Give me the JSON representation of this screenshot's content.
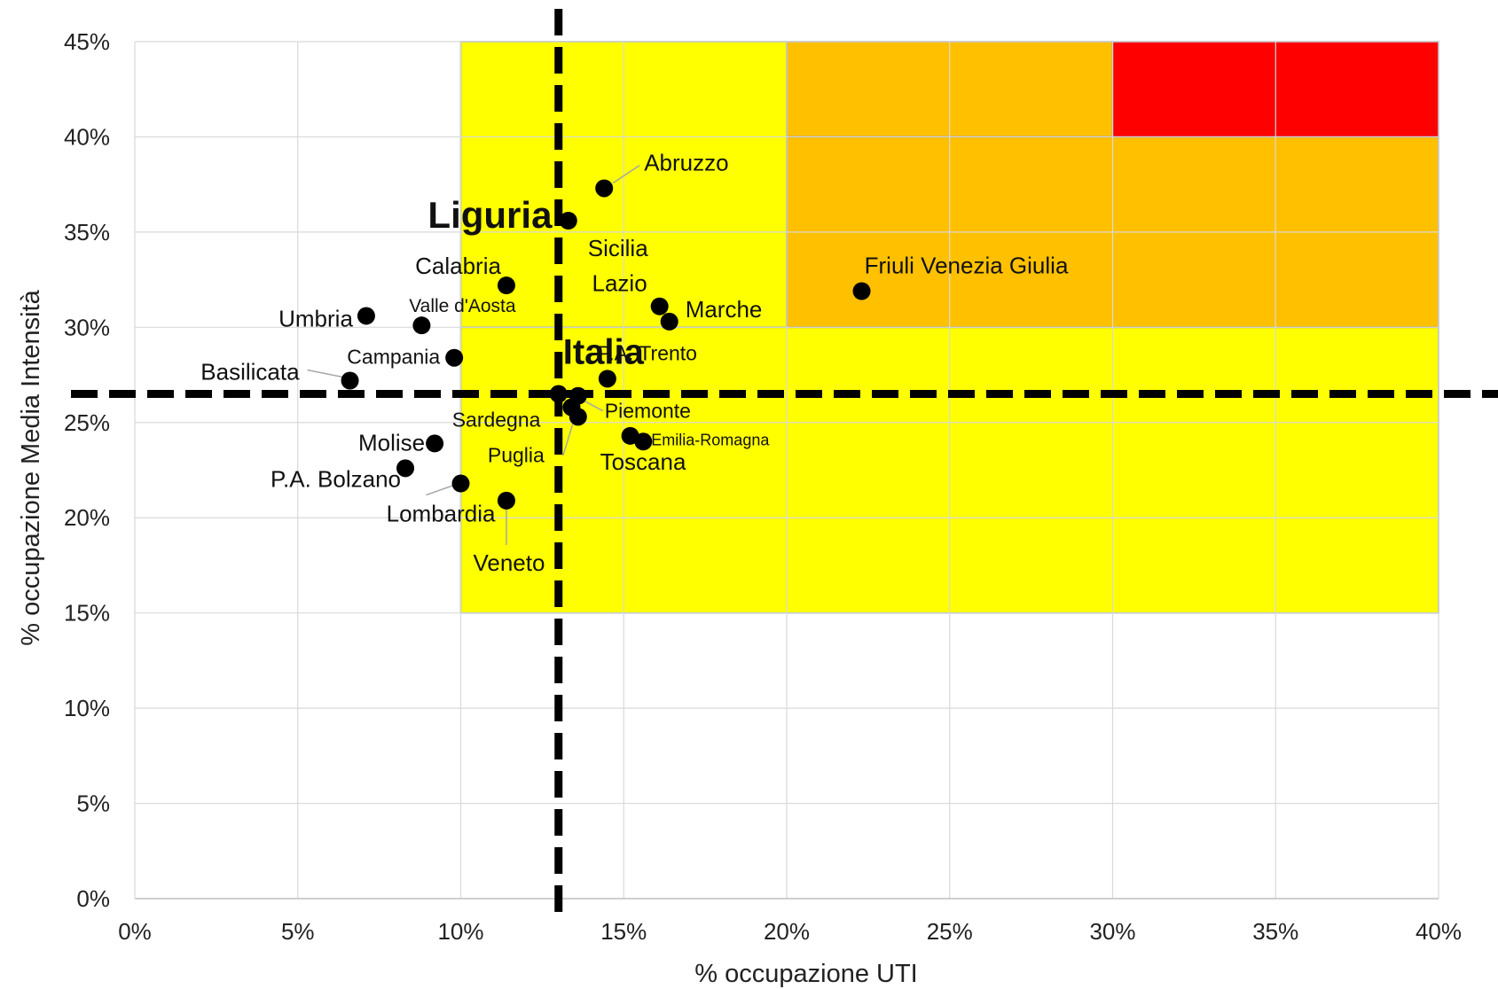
{
  "chart_data": {
    "type": "scatter",
    "xlabel": "% occupazione UTI",
    "ylabel": "% occupazione Media Intensità",
    "xlim": [
      0,
      0.4
    ],
    "ylim": [
      0,
      0.45
    ],
    "x_ticks": [
      "0%",
      "5%",
      "10%",
      "15%",
      "20%",
      "25%",
      "30%",
      "35%",
      "40%"
    ],
    "y_ticks": [
      "0%",
      "5%",
      "10%",
      "15%",
      "20%",
      "25%",
      "30%",
      "35%",
      "40%",
      "45%"
    ],
    "grid": true,
    "reference_lines": {
      "x": 0.13,
      "y": 0.265,
      "style": "dashed",
      "color": "#000000"
    },
    "zones": [
      {
        "name": "yellow-zone-top",
        "x": [
          0.1,
          0.2
        ],
        "y": [
          0.3,
          0.45
        ],
        "color": "#ffff00"
      },
      {
        "name": "yellow-zone-bottom",
        "x": [
          0.1,
          0.4
        ],
        "y": [
          0.15,
          0.3
        ],
        "color": "#ffff00"
      },
      {
        "name": "orange-zone-upper",
        "x": [
          0.2,
          0.3
        ],
        "y": [
          0.4,
          0.45
        ],
        "color": "#ffc000"
      },
      {
        "name": "orange-zone-lower",
        "x": [
          0.2,
          0.4
        ],
        "y": [
          0.3,
          0.4
        ],
        "color": "#ffc000"
      },
      {
        "name": "red-zone",
        "x": [
          0.3,
          0.4
        ],
        "y": [
          0.4,
          0.45
        ],
        "color": "#ff0000"
      }
    ],
    "points": [
      {
        "label": "Abruzzo",
        "x": 0.144,
        "y": 0.373
      },
      {
        "label": "Liguria",
        "x": 0.134,
        "y": 0.356,
        "highlight": true,
        "color": "#0000ee"
      },
      {
        "label": "Sicilia",
        "x": 0.133,
        "y": 0.356
      },
      {
        "label": "Calabria",
        "x": 0.114,
        "y": 0.322
      },
      {
        "label": "Lazio",
        "x": 0.161,
        "y": 0.311
      },
      {
        "label": "Marche",
        "x": 0.164,
        "y": 0.303
      },
      {
        "label": "Valle d'Aosta",
        "x": 0.088,
        "y": 0.301
      },
      {
        "label": "Umbria",
        "x": 0.071,
        "y": 0.306
      },
      {
        "label": "Friuli Venezia Giulia",
        "x": 0.223,
        "y": 0.319
      },
      {
        "label": "Campania",
        "x": 0.098,
        "y": 0.284
      },
      {
        "label": "Italia",
        "x": 0.13,
        "y": 0.265,
        "highlight": true,
        "color": "#000000"
      },
      {
        "label": "P.A. Trento",
        "x": 0.145,
        "y": 0.273
      },
      {
        "label": "Basilicata",
        "x": 0.066,
        "y": 0.272
      },
      {
        "label": "Piemonte",
        "x": 0.136,
        "y": 0.264
      },
      {
        "label": "Sardegna",
        "x": 0.134,
        "y": 0.258
      },
      {
        "label": "Puglia",
        "x": 0.136,
        "y": 0.253
      },
      {
        "label": "Emilia-Romagna",
        "x": 0.156,
        "y": 0.24
      },
      {
        "label": "Toscana",
        "x": 0.152,
        "y": 0.243
      },
      {
        "label": "Molise",
        "x": 0.092,
        "y": 0.239
      },
      {
        "label": "P.A. Bolzano",
        "x": 0.083,
        "y": 0.226
      },
      {
        "label": "Lombardia",
        "x": 0.1,
        "y": 0.218
      },
      {
        "label": "Veneto",
        "x": 0.114,
        "y": 0.209
      }
    ]
  }
}
